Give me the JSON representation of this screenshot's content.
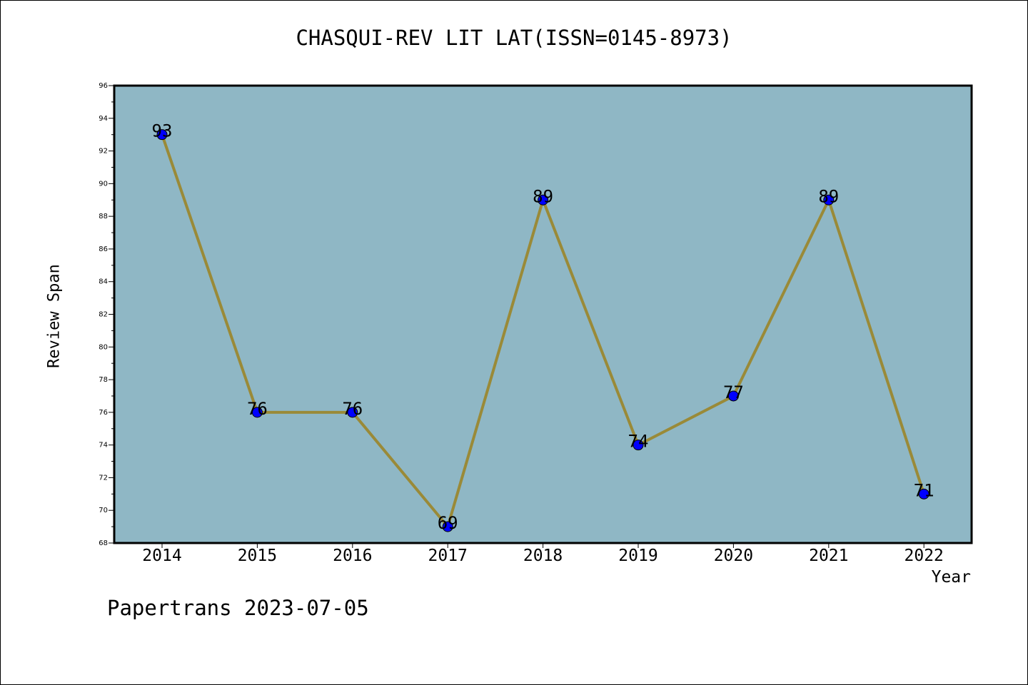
{
  "footer": {
    "note": "Papertrans 2023-07-05"
  },
  "chart_data": {
    "type": "line",
    "title": "CHASQUI-REV LIT LAT(ISSN=0145-8973)",
    "xlabel": "Year",
    "ylabel": "Review Span",
    "categories": [
      "2014",
      "2015",
      "2016",
      "2017",
      "2018",
      "2019",
      "2020",
      "2021",
      "2022"
    ],
    "values": [
      93,
      76,
      76,
      69,
      89,
      74,
      77,
      89,
      71
    ],
    "ylim": [
      68,
      96
    ],
    "yticks": [
      68,
      70,
      72,
      74,
      76,
      78,
      80,
      82,
      84,
      86,
      88,
      90,
      92,
      94,
      96
    ],
    "data_labels": [
      "93",
      "76",
      "76",
      "69",
      "89",
      "74",
      "77",
      "89",
      "71"
    ],
    "grid": false,
    "colors": {
      "plot_background": "#8fb7c5",
      "line": "#9a8a38",
      "marker": "#0000ff"
    }
  }
}
